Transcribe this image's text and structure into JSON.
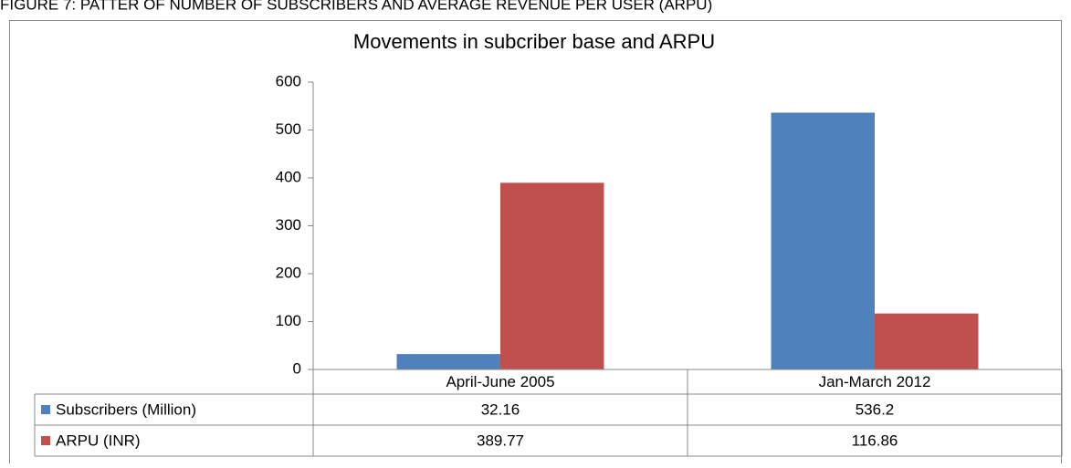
{
  "caption": "FIGURE 7: PATTER OF NUMBER OF SUBSCRIBERS AND AVERAGE REVENUE PER USER (ARPU)",
  "chart_data": {
    "type": "bar",
    "title": "Movements in subcriber base and ARPU",
    "categories": [
      "April-June 2005",
      "Jan-March 2012"
    ],
    "series": [
      {
        "name": "Subscribers (Million)",
        "color": "#4f81bd",
        "values": [
          32.16,
          536.2
        ]
      },
      {
        "name": "ARPU (INR)",
        "color": "#c0504d",
        "values": [
          389.77,
          116.86
        ]
      }
    ],
    "ylim": [
      0,
      600
    ],
    "yticks": [
      0,
      100,
      200,
      300,
      400,
      500,
      600
    ],
    "grid": false,
    "data_table": true
  }
}
